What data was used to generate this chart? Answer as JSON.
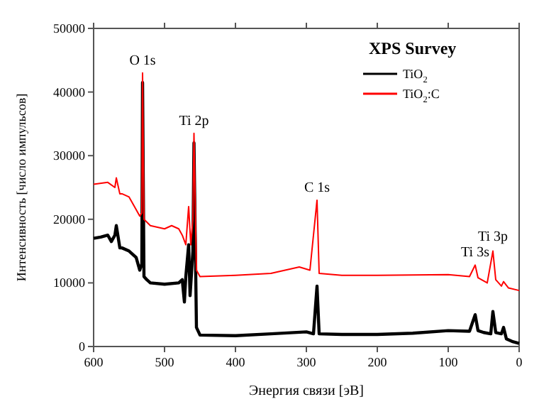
{
  "chart_data": {
    "type": "line",
    "xlabel": "Энергия связи [эВ]",
    "ylabel": "Интенсивность [число импульсов]",
    "legend_title": "XPS Survey",
    "legend": "top right",
    "grid": false,
    "marker": "none",
    "line_style": "solid",
    "xlim": [
      600,
      0
    ],
    "xticks": [
      600,
      500,
      400,
      300,
      200,
      100,
      0
    ],
    "ylim": [
      0,
      50000
    ],
    "yticks": [
      0,
      10000,
      20000,
      30000,
      40000,
      50000
    ],
    "series": [
      {
        "name": "TiO$_{2}$",
        "color": "#000000",
        "x": [
          600,
          590,
          580,
          575,
          570,
          568,
          563,
          560,
          550,
          540,
          535,
          532,
          531,
          529,
          525,
          520,
          500,
          480,
          475,
          472,
          470,
          466,
          464,
          460,
          458.5,
          455,
          450,
          400,
          350,
          300,
          290,
          285,
          282,
          250,
          200,
          150,
          100,
          70,
          62,
          58,
          50,
          40,
          37,
          33,
          25,
          22,
          18,
          10,
          0
        ],
        "values": [
          17000,
          17200,
          17500,
          16500,
          17500,
          19000,
          15500,
          15500,
          15000,
          14000,
          12000,
          13000,
          41500,
          11000,
          10500,
          10000,
          9800,
          10000,
          10500,
          7000,
          11000,
          16000,
          8000,
          15000,
          32000,
          3000,
          1800,
          1700,
          2000,
          2300,
          2000,
          9500,
          2000,
          1900,
          1900,
          2100,
          2500,
          2400,
          5000,
          2500,
          2200,
          2000,
          5500,
          2200,
          2000,
          3000,
          1200,
          800,
          500
        ]
      },
      {
        "name": "TiO$_{2}$:C",
        "color": "#ff0000",
        "x": [
          600,
          580,
          570,
          568,
          563,
          560,
          550,
          540,
          535,
          532,
          531,
          529,
          520,
          500,
          490,
          480,
          475,
          470,
          466,
          463,
          460,
          458.5,
          455,
          450,
          400,
          350,
          310,
          295,
          285,
          282,
          250,
          200,
          100,
          70,
          62,
          58,
          45,
          37,
          33,
          25,
          22,
          15,
          0
        ],
        "values": [
          25500,
          25800,
          25000,
          26500,
          24000,
          24000,
          23500,
          21500,
          20500,
          21000,
          43000,
          20000,
          19000,
          18500,
          19000,
          18500,
          17500,
          16000,
          22000,
          16000,
          20000,
          33500,
          12000,
          11000,
          11200,
          11500,
          12500,
          12000,
          23000,
          11500,
          11200,
          11200,
          11300,
          11000,
          12800,
          10800,
          10000,
          15000,
          10500,
          9500,
          10200,
          9200,
          8800
        ]
      }
    ],
    "annotations": [
      {
        "text": "O 1s",
        "x": 531,
        "y": 43000
      },
      {
        "text": "Ti 2p",
        "x": 458.5,
        "y": 33500
      },
      {
        "text": "C 1s",
        "x": 285,
        "y": 23000
      },
      {
        "text": "Ti 3s",
        "x": 62,
        "y": 12800
      },
      {
        "text": "Ti 3p",
        "x": 37,
        "y": 15000
      }
    ]
  }
}
